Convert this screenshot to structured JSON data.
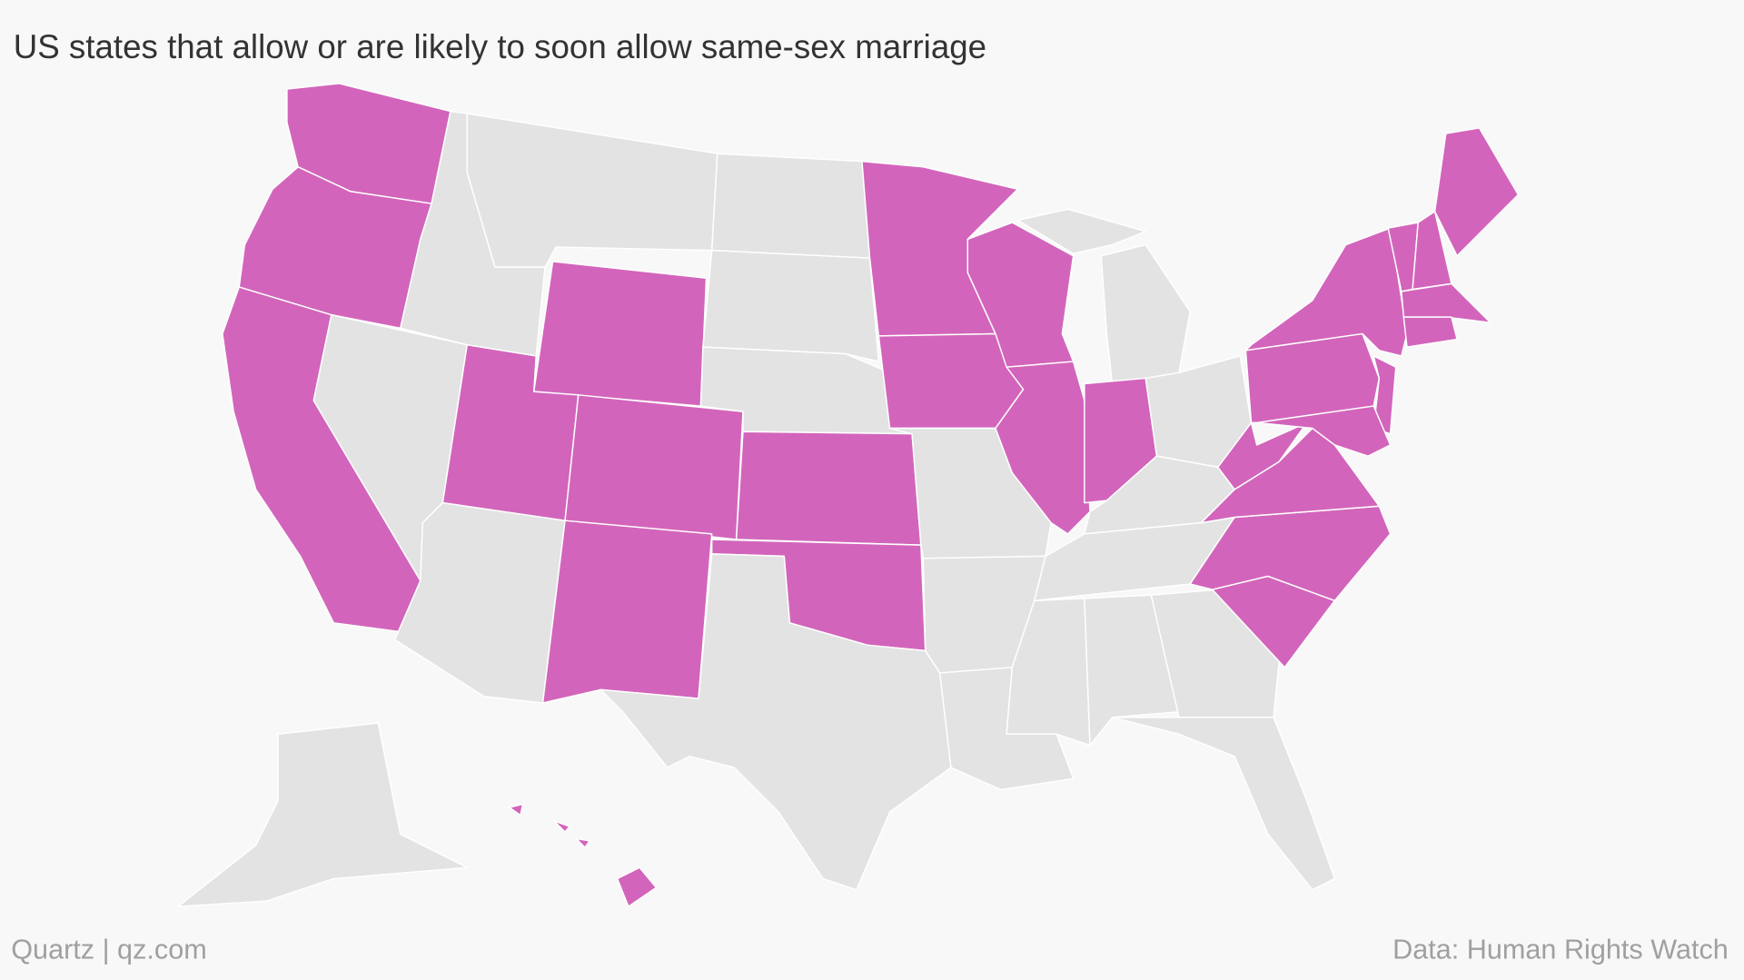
{
  "title": "US states that allow or are likely to soon allow same-sex marriage",
  "credit": "Quartz | qz.com",
  "source": "Data: Human Rights Watch",
  "highlight_color": "#d265bb",
  "base_color": "#e3e3e3",
  "highlighted": [
    true,
    true,
    true,
    false,
    false,
    false,
    true,
    true,
    false,
    true,
    true,
    false,
    false,
    false,
    true,
    true,
    false,
    true,
    true,
    false,
    false,
    false,
    true,
    true,
    false,
    true,
    false,
    false,
    false,
    false,
    false,
    false,
    false,
    true,
    true,
    true,
    true,
    true,
    true,
    true,
    true,
    true,
    true,
    true,
    true,
    true,
    false,
    true
  ]
}
